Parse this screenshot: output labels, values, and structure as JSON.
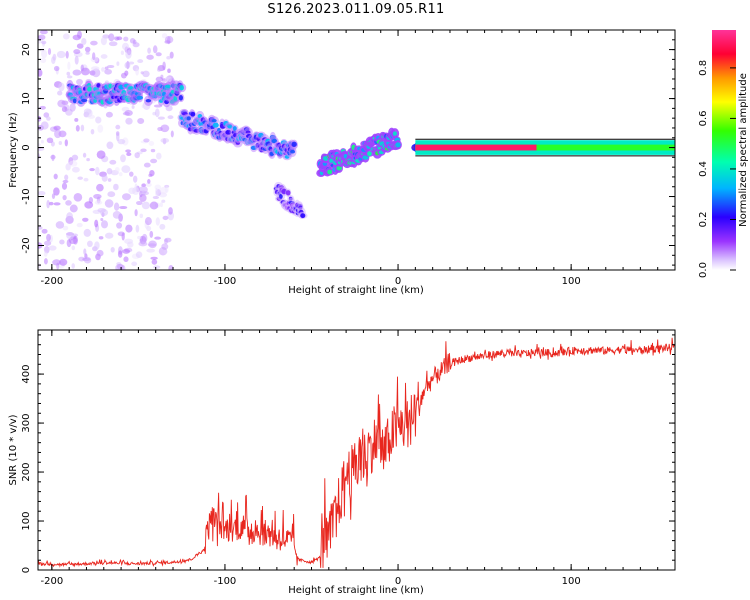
{
  "title": "S126.2023.011.09.05.R11",
  "colors": {
    "snr_line": "#e8261e",
    "colorbar": [
      "#ffffff",
      "#cc99ff",
      "#7a00ff",
      "#0000ff",
      "#00ffff",
      "#00ff44",
      "#ffff00",
      "#ff8800",
      "#ff0044",
      "#ff44aa"
    ]
  },
  "chart_data": [
    {
      "type": "heatmap",
      "title": "S126.2023.011.09.05.R11",
      "xlabel": "Height of straight line (km)",
      "ylabel": "Frequency (Hz)",
      "xlim": [
        -208,
        160
      ],
      "ylim": [
        -25,
        24
      ],
      "x_ticks": [
        "-200",
        "-100",
        "0",
        "100"
      ],
      "y_ticks": [
        "20",
        "10",
        "0",
        "-10",
        "-20"
      ],
      "colorbar": {
        "label": "Normalized spectral amplitude",
        "range": [
          0,
          0.95
        ],
        "ticks": [
          "0.0",
          "0.2",
          "0.4",
          "0.6",
          "0.8"
        ]
      },
      "features": [
        {
          "name": "scattered echoes",
          "x_range": [
            -208,
            -130
          ],
          "freq_range": [
            -25,
            24
          ],
          "amplitude": 0.05
        },
        {
          "name": "band near 11 Hz",
          "x_range": [
            -190,
            -125
          ],
          "freq_center": 11,
          "amplitude": 0.35
        },
        {
          "name": "descending track",
          "x_range": [
            -125,
            -60
          ],
          "freq_from": 6,
          "freq_to": -1,
          "amplitude": 0.3
        },
        {
          "name": "lower branch",
          "x_range": [
            -70,
            -55
          ],
          "freq_from": -9,
          "freq_to": -13,
          "amplitude": 0.2
        },
        {
          "name": "rising track",
          "x_range": [
            -45,
            0
          ],
          "freq_from": -4,
          "freq_to": 2,
          "amplitude": 0.45
        },
        {
          "name": "main echo line",
          "x_range": [
            10,
            80
          ],
          "freq_center": 0,
          "amplitude": 0.95
        },
        {
          "name": "echo line tail",
          "x_range": [
            80,
            160
          ],
          "freq_center": 0,
          "amplitude": 0.35
        }
      ]
    },
    {
      "type": "line",
      "xlabel": "Height of straight line (km)",
      "ylabel": "SNR (10 * v/v)",
      "xlim": [
        -208,
        160
      ],
      "ylim": [
        0,
        490
      ],
      "x_ticks": [
        "-200",
        "-100",
        "0",
        "100"
      ],
      "y_ticks": [
        "0",
        "100",
        "200",
        "300",
        "400"
      ],
      "series": [
        {
          "x": [
            -208,
            -190,
            -170,
            -150,
            -130,
            -120,
            -112,
            -108,
            -100,
            -90,
            -80,
            -70,
            -62,
            -58,
            -50,
            -45,
            -40,
            -35,
            -30,
            -25,
            -20,
            -17,
            -12,
            -8,
            -4,
            0,
            5,
            10,
            15,
            20,
            25,
            30,
            35,
            40,
            50,
            60,
            70,
            80,
            90,
            100,
            110,
            120,
            130,
            140,
            150,
            160
          ],
          "y": [
            12,
            10,
            14,
            12,
            15,
            20,
            40,
            100,
            75,
            80,
            70,
            60,
            50,
            20,
            15,
            25,
            50,
            110,
            175,
            190,
            210,
            230,
            250,
            220,
            260,
            275,
            280,
            300,
            360,
            385,
            400,
            420,
            425,
            430,
            435,
            440,
            438,
            442,
            440,
            445,
            447,
            445,
            448,
            446,
            450,
            452
          ]
        }
      ]
    }
  ]
}
